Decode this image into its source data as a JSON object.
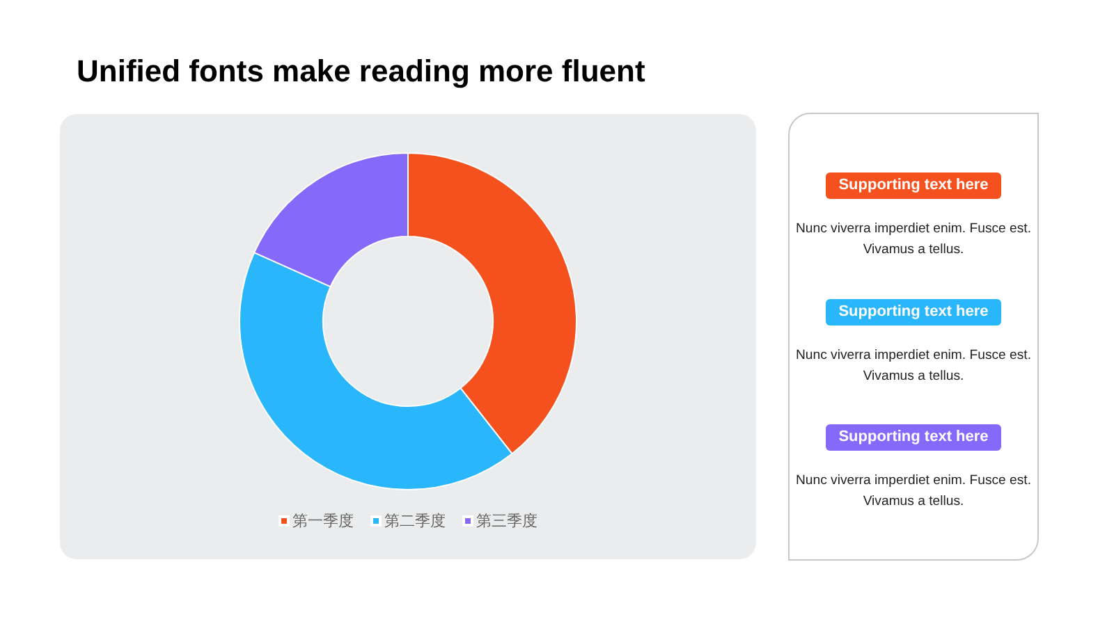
{
  "chart_data": [
    {
      "type": "donut",
      "title": "Unified fonts make reading more fluent",
      "categories": [
        "第一季度",
        "第二季度",
        "第三季度"
      ],
      "values": [
        39.4,
        42.3,
        18.3
      ],
      "colors": [
        "#f4511e",
        "#29b6fb",
        "#8569fb"
      ],
      "legend": "bottom"
    },
    {
      "type": "other",
      "annotations": [
        "Supporting text here",
        "Nunc viverra imperdiet enim. Fusce est. Vivamus a tellus.",
        "Supporting text here",
        "Nunc viverra imperdiet enim. Fusce est. Vivamus a tellus.",
        "Supporting text here",
        "Nunc viverra imperdiet enim. Fusce est. Vivamus a tellus."
      ]
    }
  ]
}
